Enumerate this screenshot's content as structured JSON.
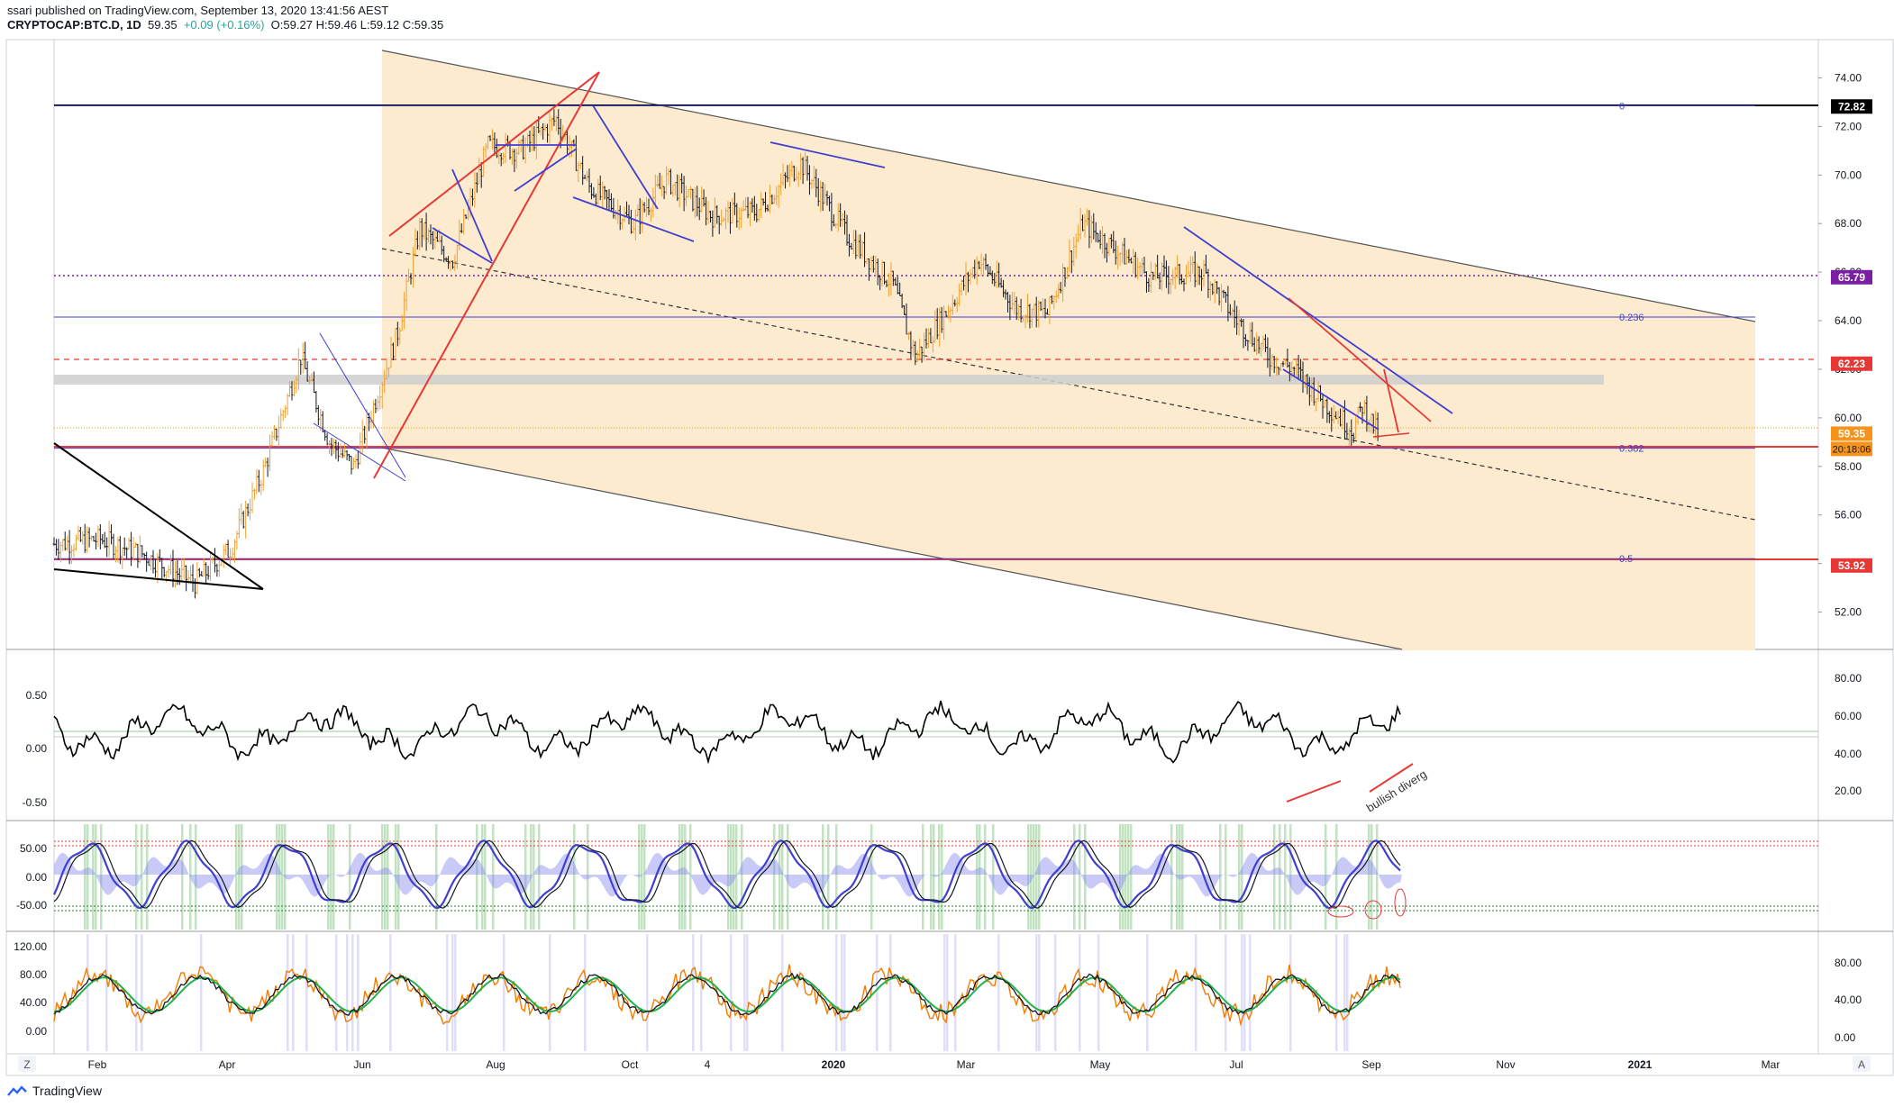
{
  "header": {
    "published": "ssari published on TradingView.com, September 13, 2020 13:41:56 AEST",
    "symbol": "CRYPTOCAP:BTC.D, 1D",
    "last": "59.35",
    "change": "+0.09 (+0.16%)",
    "ohlc": {
      "o": "O:59.27",
      "h": "H:59.46",
      "l": "L:59.12",
      "c": "C:59.35"
    }
  },
  "footer": {
    "brand": "TradingView"
  },
  "x_axis": {
    "labels": [
      "Feb",
      "Apr",
      "Jun",
      "Aug",
      "Oct",
      "4",
      "2020",
      "Mar",
      "May",
      "Jul",
      "Sep",
      "Nov",
      "2021",
      "Mar"
    ],
    "left_btn": "Z",
    "right_btn": "A"
  },
  "price_axis": {
    "ticks": [
      "74.00",
      "72.00",
      "70.00",
      "68.00",
      "66.00",
      "64.00",
      "62.00",
      "60.00",
      "58.00",
      "56.00",
      "54.00",
      "52.00"
    ],
    "badges": [
      {
        "label": "72.82",
        "value": 72.82,
        "color": "#000000"
      },
      {
        "label": "65.79",
        "value": 65.79,
        "color": "#7b1fa2"
      },
      {
        "label": "62.23",
        "value": 62.23,
        "color": "#e53935"
      },
      {
        "label": "59.35",
        "value": 59.35,
        "color": "#f7931a"
      },
      {
        "label": "53.92",
        "value": 53.92,
        "color": "#e53935"
      }
    ],
    "countdown": "20:18:06"
  },
  "fib_levels": [
    {
      "label": "0",
      "value": 72.85
    },
    {
      "label": "0.236",
      "value": 64.15
    },
    {
      "label": "0.382",
      "value": 58.75
    },
    {
      "label": "0.5",
      "value": 54.2
    }
  ],
  "panes": {
    "corr": {
      "left_ticks": [
        "0.50",
        "0.00",
        "-0.50"
      ],
      "right_ticks": [
        "80.00",
        "60.00",
        "40.00",
        "20.00"
      ],
      "annotation": "bullish diverg"
    },
    "osc": {
      "left_ticks": [
        "50.00",
        "0.00",
        "-50.00"
      ]
    },
    "rsi": {
      "left_ticks": [
        "120.00",
        "80.00",
        "40.00",
        "0.00"
      ],
      "right_ticks": [
        "80.00",
        "40.00",
        "0.00"
      ]
    }
  },
  "colors": {
    "channel_fill": "#fdebd0",
    "trend_red": "#e53935",
    "trend_blue": "#3f3fd0",
    "candle_up": "#f0a030",
    "candle_down": "#131722"
  },
  "chart_data": {
    "type": "candlestick",
    "title": "CRYPTOCAP:BTC.D, 1D",
    "x_range": [
      "2019-01-20",
      "2021-03-31"
    ],
    "ylim": [
      50.5,
      75.5
    ],
    "price_path": [
      {
        "date": "2019-01-20",
        "value": 54.8
      },
      {
        "date": "2019-02-10",
        "value": 55.0
      },
      {
        "date": "2019-03-01",
        "value": 54.4
      },
      {
        "date": "2019-03-25",
        "value": 53.2
      },
      {
        "date": "2019-04-10",
        "value": 54.6
      },
      {
        "date": "2019-04-25",
        "value": 57.8
      },
      {
        "date": "2019-05-12",
        "value": 62.5
      },
      {
        "date": "2019-05-25",
        "value": 59.0
      },
      {
        "date": "2019-06-05",
        "value": 58.0
      },
      {
        "date": "2019-06-25",
        "value": 63.5
      },
      {
        "date": "2019-07-05",
        "value": 67.8
      },
      {
        "date": "2019-07-20",
        "value": 66.5
      },
      {
        "date": "2019-08-05",
        "value": 71.2
      },
      {
        "date": "2019-08-20",
        "value": 71.0
      },
      {
        "date": "2019-09-05",
        "value": 72.3
      },
      {
        "date": "2019-09-20",
        "value": 69.5
      },
      {
        "date": "2019-10-10",
        "value": 68.0
      },
      {
        "date": "2019-10-25",
        "value": 69.8
      },
      {
        "date": "2019-11-15",
        "value": 68.3
      },
      {
        "date": "2019-12-05",
        "value": 68.5
      },
      {
        "date": "2019-12-25",
        "value": 70.5
      },
      {
        "date": "2020-01-15",
        "value": 67.5
      },
      {
        "date": "2020-02-05",
        "value": 65.5
      },
      {
        "date": "2020-02-15",
        "value": 62.5
      },
      {
        "date": "2020-03-01",
        "value": 64.5
      },
      {
        "date": "2020-03-15",
        "value": 66.5
      },
      {
        "date": "2020-04-01",
        "value": 64.5
      },
      {
        "date": "2020-04-15",
        "value": 64.3
      },
      {
        "date": "2020-05-01",
        "value": 68.0
      },
      {
        "date": "2020-05-15",
        "value": 67.0
      },
      {
        "date": "2020-06-01",
        "value": 65.8
      },
      {
        "date": "2020-06-25",
        "value": 66.0
      },
      {
        "date": "2020-07-10",
        "value": 64.0
      },
      {
        "date": "2020-07-25",
        "value": 62.5
      },
      {
        "date": "2020-08-05",
        "value": 62.0
      },
      {
        "date": "2020-08-20",
        "value": 60.5
      },
      {
        "date": "2020-09-01",
        "value": 59.5
      },
      {
        "date": "2020-09-05",
        "value": 60.5
      },
      {
        "date": "2020-09-12",
        "value": 59.35
      }
    ],
    "annotations": [
      "0",
      "0.236",
      "0.382",
      "0.5",
      "bullish diverg"
    ]
  }
}
